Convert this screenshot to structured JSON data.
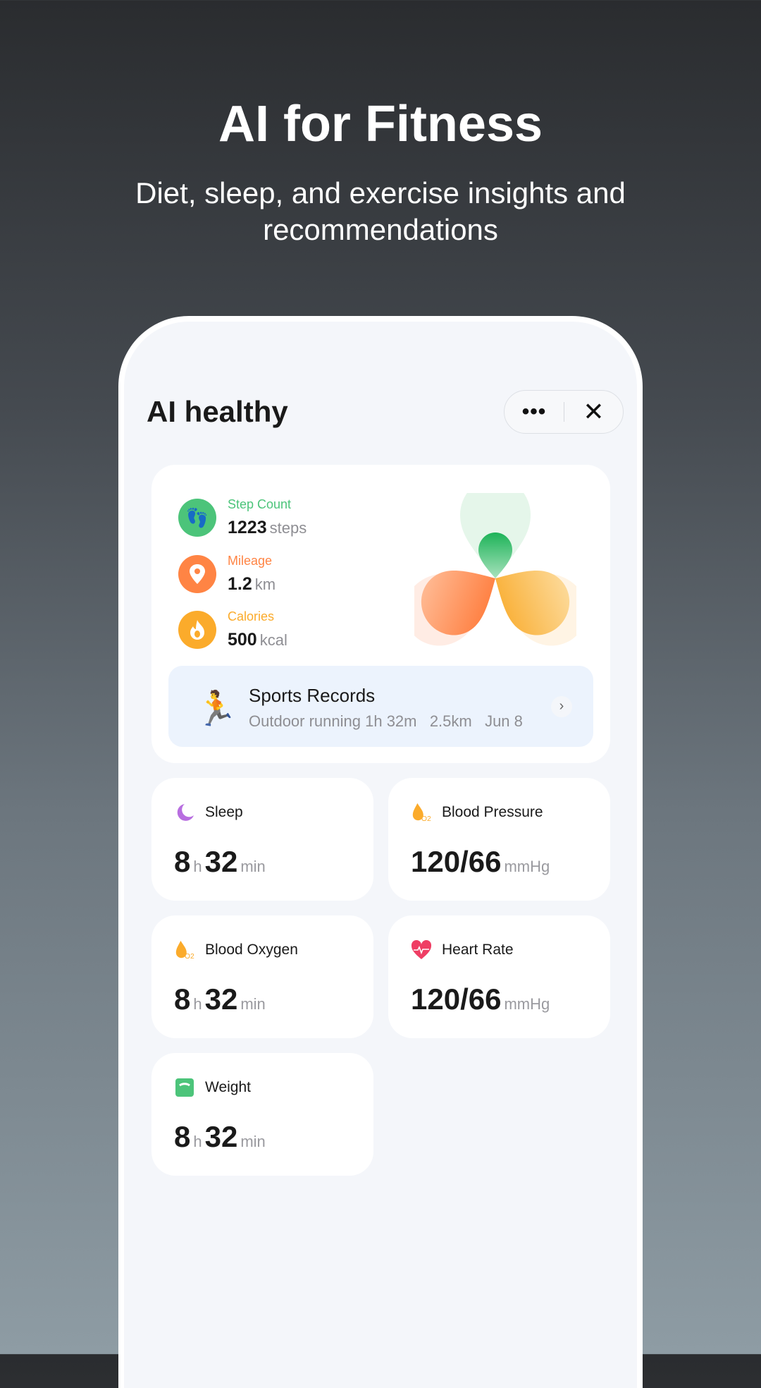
{
  "hero": {
    "title": "AI for Fitness",
    "subtitle": "Diet, sleep, and exercise insights and recommendations"
  },
  "app": {
    "title": "AI healthy",
    "more_label": "•••",
    "close_label": "✕"
  },
  "stats": [
    {
      "label": "Step Count",
      "value": "1223",
      "unit": "steps",
      "color": "#4cc47a",
      "icon": "footprints-icon"
    },
    {
      "label": "Mileage",
      "value": "1.2",
      "unit": "km",
      "color": "#ff8444",
      "icon": "location-pin-icon"
    },
    {
      "label": "Calories",
      "value": "500",
      "unit": "kcal",
      "color": "#fbab2b",
      "icon": "flame-icon"
    }
  ],
  "sports": {
    "title": "Sports Records",
    "summary": "Outdoor running 1h 32m   2.5km   Jun 8"
  },
  "metrics": [
    {
      "name": "Sleep",
      "v1": "8",
      "u1": "h",
      "v2": "32",
      "u2": "min",
      "icon": "moon-icon",
      "color": "#b86ee0"
    },
    {
      "name": "Blood Pressure",
      "v1": "120/66",
      "u1": "mmHg",
      "icon": "o2-drop-icon",
      "color": "#fbab2b"
    },
    {
      "name": "Blood Oxygen",
      "v1": "8",
      "u1": "h",
      "v2": "32",
      "u2": "min",
      "icon": "o2-drop-icon",
      "color": "#fbab2b"
    },
    {
      "name": "Heart Rate",
      "v1": "120/66",
      "u1": "mmHg",
      "icon": "heart-rate-icon",
      "color": "#ef3e64"
    },
    {
      "name": "Weight",
      "v1": "8",
      "u1": "h",
      "v2": "32",
      "u2": "min",
      "icon": "scale-icon",
      "color": "#4cc47a"
    }
  ]
}
